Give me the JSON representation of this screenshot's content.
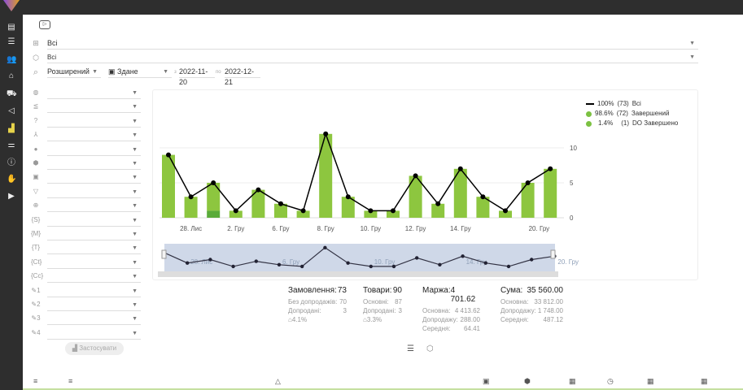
{
  "filters": {
    "group": "Всі",
    "product": "Всі",
    "search_mode": "Розширений",
    "date_type": "Здане",
    "from_label": "з",
    "date_from": "2022-11-20",
    "to_label": "по",
    "date_to": "2022-12-21"
  },
  "apply_label": "Застосувати",
  "legend": [
    {
      "pct": "100%",
      "count": "(73)",
      "label": "Всі",
      "color": "#000000"
    },
    {
      "pct": "98.6%",
      "count": "(72)",
      "label": "Завершений",
      "color": "#7cc142"
    },
    {
      "pct": "1.4%",
      "count": "(1)",
      "label": "DO Завершено",
      "color": "#5aab3a"
    }
  ],
  "stats": {
    "orders": {
      "label": "Замовлення:",
      "value": "73",
      "rows": [
        [
          "Без допродажів:",
          "70"
        ],
        [
          "Допродані:",
          "3"
        ]
      ],
      "pct": "4.1%"
    },
    "goods": {
      "label": "Товари:",
      "value": "90",
      "rows": [
        [
          "Основні:",
          "87"
        ],
        [
          "Допродані:",
          "3"
        ]
      ],
      "pct": "3.3%"
    },
    "margin": {
      "label": "Маржа:",
      "value": "4 701.62",
      "rows": [
        [
          "Основна:",
          "4 413.62"
        ],
        [
          "Допродажу:",
          "288.00"
        ],
        [
          "Середня:",
          "64.41"
        ]
      ]
    },
    "sum": {
      "label": "Сума:",
      "value": "35 560.00",
      "rows": [
        [
          "Основна:",
          "33 812.00"
        ],
        [
          "Допродажу:",
          "1 748.00"
        ],
        [
          "Середня:",
          "487.12"
        ]
      ]
    }
  },
  "chart_data": {
    "type": "bar",
    "values": [
      9,
      3,
      5,
      1,
      4,
      2,
      1,
      12,
      3,
      1,
      1,
      6,
      2,
      7,
      3,
      1,
      5,
      7
    ],
    "series": [
      {
        "name": "Завершений",
        "values": [
          9,
          3,
          4,
          1,
          4,
          2,
          1,
          12,
          3,
          1,
          1,
          6,
          2,
          7,
          3,
          1,
          5,
          7
        ],
        "color": "#8dc63f"
      },
      {
        "name": "DO Завершено",
        "values": [
          0,
          0,
          1,
          0,
          0,
          0,
          0,
          0,
          0,
          0,
          0,
          0,
          0,
          0,
          0,
          0,
          0,
          0
        ],
        "color": "#5aab3a"
      },
      {
        "name": "Всі",
        "values": [
          9,
          3,
          5,
          1,
          4,
          2,
          1,
          12,
          3,
          1,
          1,
          6,
          2,
          7,
          3,
          1,
          5,
          7
        ],
        "color": "#000000"
      }
    ],
    "x_ticks": [
      {
        "index": 1,
        "label": "28. Лис"
      },
      {
        "index": 3,
        "label": "2. Гру"
      },
      {
        "index": 5,
        "label": "6. Гру"
      },
      {
        "index": 7,
        "label": "8. Гру"
      },
      {
        "index": 9,
        "label": "10. Гру"
      },
      {
        "index": 11,
        "label": "12. Гру"
      },
      {
        "index": 13,
        "label": "14. Гру"
      },
      {
        "index": 16.5,
        "label": "20. Гру"
      }
    ],
    "nav_ticks": [
      {
        "index": 1,
        "label": "28. Лис"
      },
      {
        "index": 5,
        "label": "6. Гру"
      },
      {
        "index": 9,
        "label": "10. Гру"
      },
      {
        "index": 13,
        "label": "14. Гру"
      },
      {
        "index": 17,
        "label": "20. Гру"
      }
    ],
    "y_ticks": [
      0,
      5,
      10
    ],
    "ylim": [
      0,
      12.5
    ],
    "grid": true,
    "legend": "top-right"
  }
}
